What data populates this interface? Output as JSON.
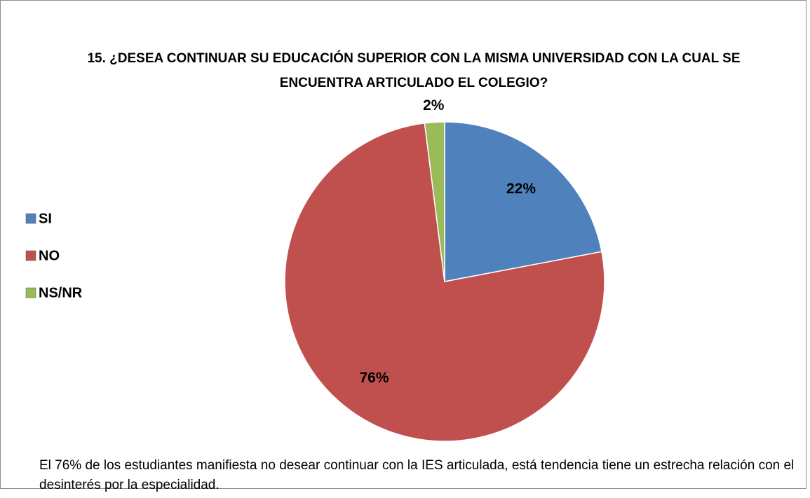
{
  "chart_data": {
    "type": "pie",
    "title": "15. ¿DESEA CONTINUAR SU EDUCACIÓN SUPERIOR CON LA MISMA UNIVERSIDAD CON LA CUAL SE ENCUENTRA ARTICULADO EL COLEGIO?",
    "categories": [
      "SI",
      "NO",
      "NS/NR"
    ],
    "values": [
      22,
      76,
      2
    ],
    "value_labels": [
      "22%",
      "76%",
      "2%"
    ],
    "colors": [
      "#4f81bd",
      "#c0504d",
      "#9bbb59"
    ],
    "legend": "left",
    "annotation": "El 76% de los estudiantes manifiesta  no desear continuar con la IES articulada,  está tendencia tiene un estrecha relación  con el desinterés  por la especialidad."
  }
}
